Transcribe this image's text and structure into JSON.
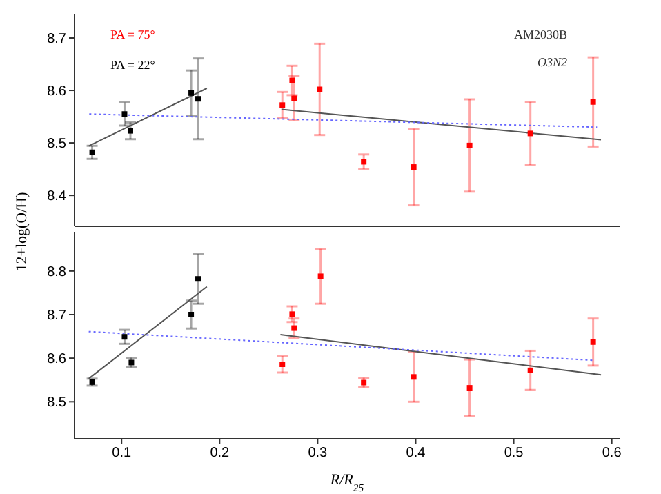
{
  "chart_data": [
    {
      "type": "scatter",
      "ylabel": "12+log(O/H)",
      "annotations": [
        "AM2030B",
        "O3N2"
      ],
      "legend": "top left",
      "marker": "square",
      "tick_labels": "y",
      "xlim": [
        0.052,
        0.608
      ],
      "xticks": [
        0.1,
        0.2,
        0.3,
        0.4,
        0.5,
        0.6
      ],
      "ylim": [
        8.341,
        8.746
      ],
      "yticks": [
        8.4,
        8.5,
        8.6,
        8.7
      ],
      "series": [
        {
          "name": "PA = 75°",
          "color": "#ff0000",
          "x": [
            0.264,
            0.274,
            0.276,
            0.302,
            0.347,
            0.398,
            0.455,
            0.517,
            0.581
          ],
          "values": [
            8.572,
            8.619,
            8.585,
            8.602,
            8.464,
            8.454,
            8.495,
            8.518,
            8.578
          ],
          "errors": [
            0.025,
            0.028,
            0.042,
            0.087,
            0.014,
            0.073,
            0.088,
            0.06,
            0.085
          ]
        },
        {
          "name": "PA = 22°",
          "color": "#000000",
          "x": [
            0.07,
            0.103,
            0.109,
            0.171,
            0.178
          ],
          "values": [
            8.482,
            8.555,
            8.523,
            8.595,
            8.584
          ],
          "errors": [
            0.0125,
            0.022,
            0.016,
            0.043,
            0.077
          ]
        },
        {
          "type": "line",
          "marker": "none",
          "color": "#555555",
          "x": [
            0.0665,
            0.187
          ],
          "values": [
            8.494,
            8.604
          ]
        },
        {
          "type": "line",
          "marker": "none",
          "color": "#555555",
          "x": [
            0.263,
            0.589
          ],
          "values": [
            8.564,
            8.506
          ]
        },
        {
          "type": "line",
          "marker": "none",
          "color": "#6666ff",
          "line_style": "dotted",
          "x": [
            0.067,
            0.585
          ],
          "values": [
            8.555,
            8.53
          ]
        }
      ]
    },
    {
      "type": "scatter",
      "xlabel": "R/R$_{25}$",
      "marker": "square",
      "xlim": [
        0.052,
        0.608
      ],
      "xticks": [
        0.1,
        0.2,
        0.3,
        0.4,
        0.5,
        0.6
      ],
      "ylim": [
        8.415,
        8.89
      ],
      "yticks": [
        8.5,
        8.6,
        8.7,
        8.8
      ],
      "series": [
        {
          "color": "#ff0000",
          "x": [
            0.264,
            0.274,
            0.276,
            0.303,
            0.347,
            0.398,
            0.455,
            0.517,
            0.581
          ],
          "values": [
            8.586,
            8.701,
            8.669,
            8.788,
            8.544,
            8.557,
            8.532,
            8.572,
            8.637
          ],
          "errors": [
            0.019,
            0.018,
            0.022,
            0.063,
            0.011,
            0.057,
            0.065,
            0.045,
            0.054
          ]
        },
        {
          "color": "#000000",
          "x": [
            0.07,
            0.103,
            0.11,
            0.171,
            0.178
          ],
          "values": [
            8.545,
            8.649,
            8.59,
            8.7,
            8.782
          ],
          "errors": [
            0.008,
            0.016,
            0.011,
            0.032,
            0.057
          ]
        },
        {
          "type": "line",
          "marker": "none",
          "color": "#555555",
          "x": [
            0.0665,
            0.187
          ],
          "values": [
            8.553,
            8.764
          ]
        },
        {
          "type": "line",
          "marker": "none",
          "color": "#555555",
          "x": [
            0.262,
            0.589
          ],
          "values": [
            8.654,
            8.562
          ]
        },
        {
          "type": "line",
          "marker": "none",
          "color": "#6666ff",
          "line_style": "dotted",
          "x": [
            0.0665,
            0.582
          ],
          "values": [
            8.661,
            8.595
          ]
        }
      ]
    }
  ]
}
